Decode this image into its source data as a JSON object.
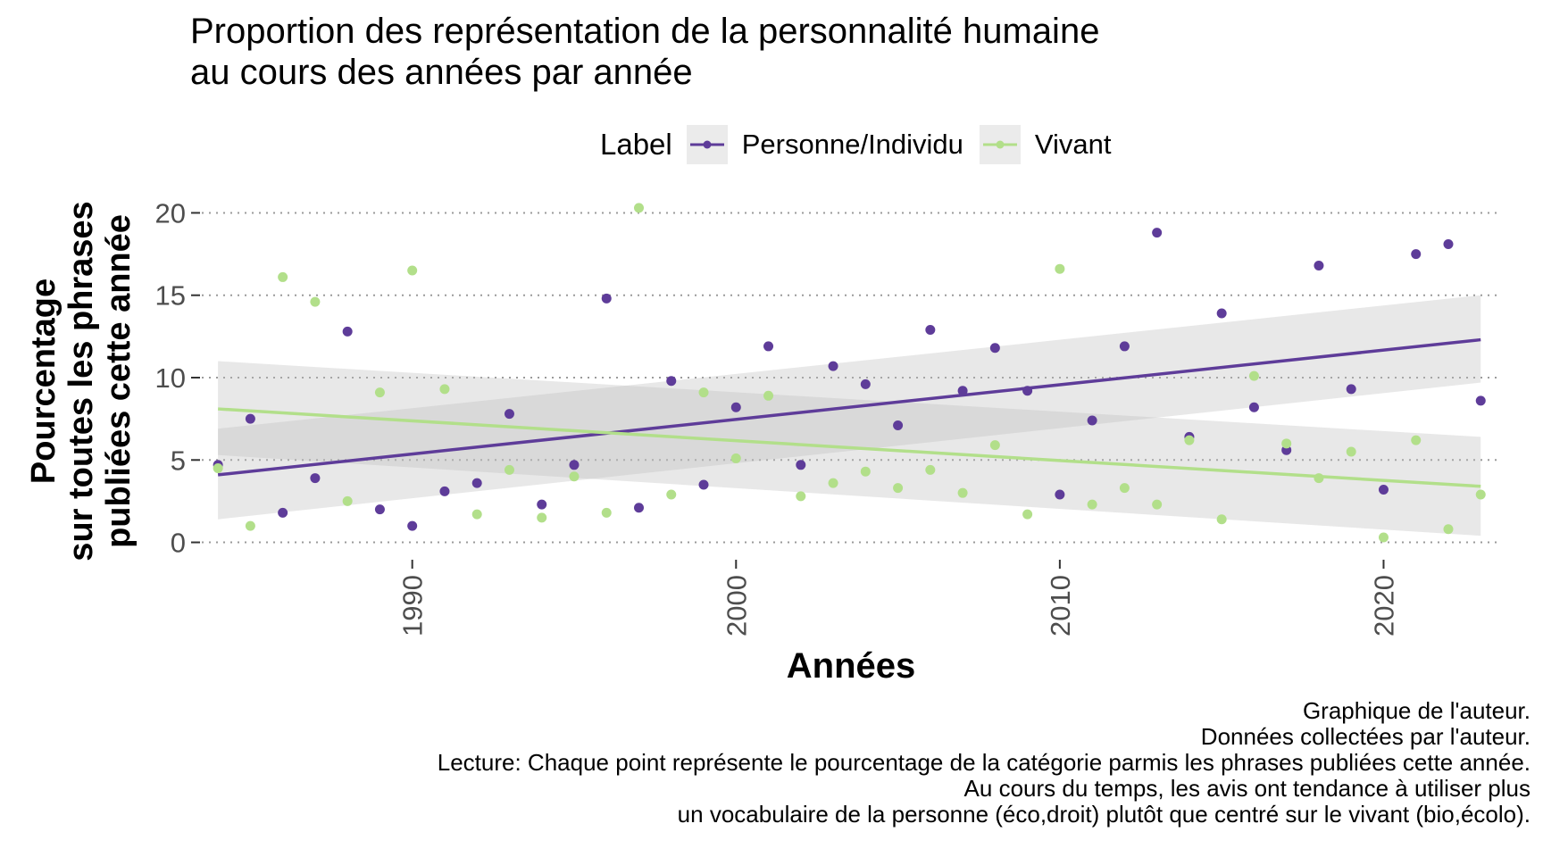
{
  "chart_data": {
    "type": "scatter",
    "title_lines": [
      "Proportion des représentation de la personnalité humaine",
      "au cours des années par année"
    ],
    "xlabel": "Années",
    "ylabel_lines": [
      "Pourcentage",
      "sur toutes les phrases",
      "publiées cette année"
    ],
    "legend_title": "Label",
    "legend_position": "top",
    "grid": "horizontal dotted",
    "xlim": [
      1983.5,
      2023.6
    ],
    "ylim": [
      -1.0,
      21.0
    ],
    "x_ticks": [
      1990,
      2000,
      2010,
      2020
    ],
    "y_ticks": [
      0,
      5,
      10,
      15,
      20
    ],
    "series": [
      {
        "name": "Personne/Individu",
        "color": "#5e3c99",
        "x": [
          1984,
          1985,
          1986,
          1987,
          1988,
          1989,
          1990,
          1991,
          1992,
          1993,
          1994,
          1995,
          1996,
          1997,
          1998,
          1999,
          2000,
          2001,
          2002,
          2003,
          2004,
          2005,
          2006,
          2007,
          2008,
          2009,
          2010,
          2011,
          2012,
          2013,
          2014,
          2015,
          2016,
          2017,
          2018,
          2019,
          2020,
          2021,
          2022,
          2023
        ],
        "y": [
          4.7,
          7.5,
          1.8,
          3.9,
          12.8,
          2.0,
          1.0,
          3.1,
          3.6,
          7.8,
          2.3,
          4.7,
          14.8,
          2.1,
          9.8,
          3.5,
          8.2,
          11.9,
          4.7,
          10.7,
          9.6,
          7.1,
          12.9,
          9.2,
          11.8,
          9.2,
          2.9,
          7.4,
          11.9,
          18.8,
          6.4,
          13.9,
          8.2,
          5.6,
          16.8,
          9.3,
          3.2,
          17.5,
          18.1,
          8.6
        ],
        "trend": {
          "x": [
            1984,
            2023
          ],
          "y": [
            4.1,
            12.3
          ],
          "ci_lower": [
            1.4,
            9.7
          ],
          "ci_upper": [
            6.9,
            15.0
          ]
        }
      },
      {
        "name": "Vivant",
        "color": "#b2df8a",
        "x": [
          1984,
          1985,
          1986,
          1987,
          1988,
          1989,
          1990,
          1991,
          1992,
          1993,
          1994,
          1995,
          1996,
          1997,
          1998,
          1999,
          2000,
          2001,
          2002,
          2003,
          2004,
          2005,
          2006,
          2007,
          2008,
          2009,
          2010,
          2011,
          2012,
          2013,
          2014,
          2015,
          2016,
          2017,
          2018,
          2019,
          2020,
          2021,
          2022,
          2023
        ],
        "y": [
          4.5,
          1.0,
          16.1,
          14.6,
          2.5,
          9.1,
          16.5,
          9.3,
          1.7,
          4.4,
          1.5,
          4.0,
          1.8,
          20.3,
          2.9,
          9.1,
          5.1,
          8.9,
          2.8,
          3.6,
          4.3,
          3.3,
          4.4,
          3.0,
          5.9,
          1.7,
          16.6,
          2.3,
          3.3,
          2.3,
          6.2,
          1.4,
          10.1,
          6.0,
          3.9,
          5.5,
          0.3,
          6.2,
          0.8,
          2.9
        ],
        "trend": {
          "x": [
            1984,
            2023
          ],
          "y": [
            8.1,
            3.4
          ],
          "ci_lower": [
            5.3,
            0.4
          ],
          "ci_upper": [
            11.0,
            6.4
          ]
        }
      }
    ]
  },
  "caption_lines": [
    "Graphique de l'auteur.",
    "Données collectées par l'auteur.",
    "Lecture: Chaque point représente le pourcentage de la catégorie parmis les phrases publiées cette année.",
    "Au cours du temps, les avis ont tendance à utiliser plus",
    "un vocabulaire de la personne (éco,droit) plutôt que centré sur le vivant (bio,écolo)."
  ]
}
